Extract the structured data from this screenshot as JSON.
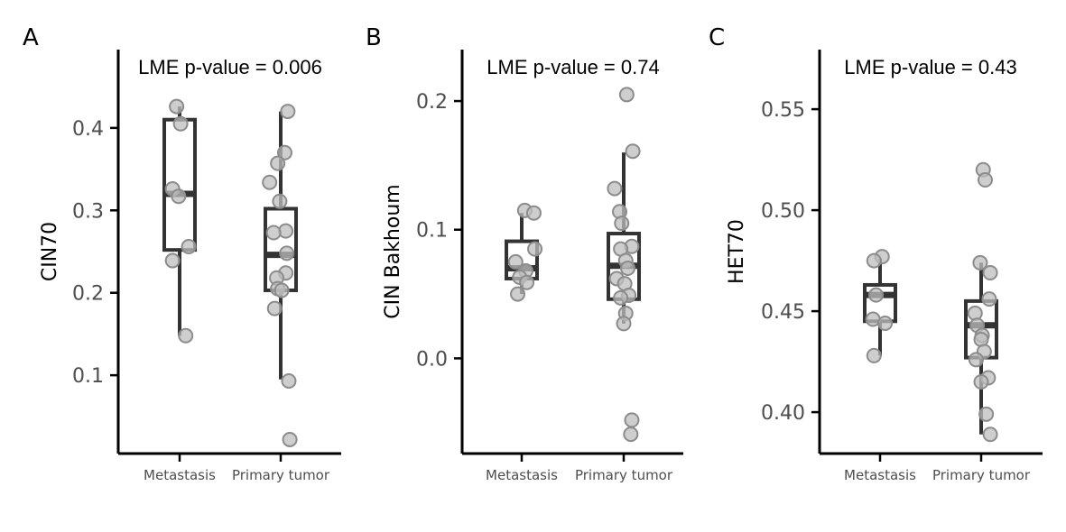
{
  "chart_data": [
    {
      "type": "box",
      "panel_tag": "A",
      "annotation": "LME p-value = 0.006",
      "ylabel": "CIN70",
      "categories": [
        "Metastasis",
        "Primary tumor"
      ],
      "yticks": [
        0.1,
        0.2,
        0.3,
        0.4
      ],
      "ytick_labels": [
        "0.1",
        "0.2",
        "0.3",
        "0.4"
      ],
      "ylim": [
        0.005,
        0.495
      ],
      "boxes": [
        {
          "q1": 0.252,
          "median": 0.32,
          "q3": 0.41,
          "whisker_low": 0.148,
          "whisker_high": 0.426
        },
        {
          "q1": 0.203,
          "median": 0.246,
          "q3": 0.302,
          "whisker_low": 0.095,
          "whisker_high": 0.42
        }
      ],
      "points": [
        {
          "category": 0,
          "jitter": -0.03,
          "value": 0.426
        },
        {
          "category": 0,
          "jitter": 0.01,
          "value": 0.405
        },
        {
          "category": 0,
          "jitter": -0.07,
          "value": 0.326
        },
        {
          "category": 0,
          "jitter": -0.01,
          "value": 0.317
        },
        {
          "category": 0,
          "jitter": 0.09,
          "value": 0.256
        },
        {
          "category": 0,
          "jitter": -0.07,
          "value": 0.239
        },
        {
          "category": 0,
          "jitter": 0.06,
          "value": 0.148
        },
        {
          "category": 1,
          "jitter": 0.07,
          "value": 0.42
        },
        {
          "category": 1,
          "jitter": 0.04,
          "value": 0.37
        },
        {
          "category": 1,
          "jitter": -0.03,
          "value": 0.357
        },
        {
          "category": 1,
          "jitter": -0.11,
          "value": 0.334
        },
        {
          "category": 1,
          "jitter": -0.01,
          "value": 0.311
        },
        {
          "category": 1,
          "jitter": 0.05,
          "value": 0.275
        },
        {
          "category": 1,
          "jitter": -0.07,
          "value": 0.273
        },
        {
          "category": 1,
          "jitter": 0.06,
          "value": 0.248
        },
        {
          "category": 1,
          "jitter": 0.05,
          "value": 0.224
        },
        {
          "category": 1,
          "jitter": -0.04,
          "value": 0.218
        },
        {
          "category": 1,
          "jitter": -0.03,
          "value": 0.205
        },
        {
          "category": 1,
          "jitter": 0.01,
          "value": 0.203
        },
        {
          "category": 1,
          "jitter": -0.06,
          "value": 0.181
        },
        {
          "category": 1,
          "jitter": 0.08,
          "value": 0.093
        },
        {
          "category": 1,
          "jitter": 0.09,
          "value": 0.022
        }
      ]
    },
    {
      "type": "box",
      "panel_tag": "B",
      "annotation": "LME p-value = 0.74",
      "ylabel": "CIN Bakhoum",
      "categories": [
        "Metastasis",
        "Primary tumor"
      ],
      "yticks": [
        0.0,
        0.1,
        0.2
      ],
      "ytick_labels": [
        "0.0",
        "0.1",
        "0.2"
      ],
      "ylim": [
        -0.074,
        0.24
      ],
      "boxes": [
        {
          "q1": 0.062,
          "median": 0.07,
          "q3": 0.091,
          "whisker_low": 0.05,
          "whisker_high": 0.113
        },
        {
          "q1": 0.046,
          "median": 0.072,
          "q3": 0.097,
          "whisker_low": 0.027,
          "whisker_high": 0.16
        }
      ],
      "points": [
        {
          "category": 0,
          "jitter": 0.03,
          "value": 0.115
        },
        {
          "category": 0,
          "jitter": 0.12,
          "value": 0.113
        },
        {
          "category": 0,
          "jitter": 0.13,
          "value": 0.085
        },
        {
          "category": 0,
          "jitter": -0.06,
          "value": 0.075
        },
        {
          "category": 0,
          "jitter": 0.04,
          "value": 0.068
        },
        {
          "category": 0,
          "jitter": -0.02,
          "value": 0.063
        },
        {
          "category": 0,
          "jitter": 0.05,
          "value": 0.059
        },
        {
          "category": 0,
          "jitter": -0.04,
          "value": 0.05
        },
        {
          "category": 1,
          "jitter": 0.03,
          "value": 0.205
        },
        {
          "category": 1,
          "jitter": 0.09,
          "value": 0.161
        },
        {
          "category": 1,
          "jitter": -0.09,
          "value": 0.132
        },
        {
          "category": 1,
          "jitter": -0.04,
          "value": 0.114
        },
        {
          "category": 1,
          "jitter": -0.02,
          "value": 0.105
        },
        {
          "category": 1,
          "jitter": 0.08,
          "value": 0.087
        },
        {
          "category": 1,
          "jitter": -0.03,
          "value": 0.085
        },
        {
          "category": 1,
          "jitter": 0.02,
          "value": 0.076
        },
        {
          "category": 1,
          "jitter": 0.04,
          "value": 0.07
        },
        {
          "category": 1,
          "jitter": -0.07,
          "value": 0.062
        },
        {
          "category": 1,
          "jitter": 0.01,
          "value": 0.058
        },
        {
          "category": 1,
          "jitter": 0.05,
          "value": 0.049
        },
        {
          "category": 1,
          "jitter": -0.03,
          "value": 0.047
        },
        {
          "category": 1,
          "jitter": 0.02,
          "value": 0.035
        },
        {
          "category": 1,
          "jitter": 0.0,
          "value": 0.027
        },
        {
          "category": 1,
          "jitter": 0.08,
          "value": -0.048
        },
        {
          "category": 1,
          "jitter": 0.07,
          "value": -0.059
        }
      ]
    },
    {
      "type": "box",
      "panel_tag": "C",
      "annotation": "LME p-value = 0.43",
      "ylabel": "HET70",
      "categories": [
        "Metastasis",
        "Primary tumor"
      ],
      "yticks": [
        0.4,
        0.45,
        0.5,
        0.55
      ],
      "ytick_labels": [
        "0.40",
        "0.45",
        "0.50",
        "0.55"
      ],
      "ylim": [
        0.3795,
        0.5795
      ],
      "boxes": [
        {
          "q1": 0.445,
          "median": 0.458,
          "q3": 0.463,
          "whisker_low": 0.428,
          "whisker_high": 0.476
        },
        {
          "q1": 0.427,
          "median": 0.443,
          "q3": 0.455,
          "whisker_low": 0.389,
          "whisker_high": 0.474
        }
      ],
      "points": [
        {
          "category": 0,
          "jitter": 0.02,
          "value": 0.477
        },
        {
          "category": 0,
          "jitter": -0.06,
          "value": 0.475
        },
        {
          "category": 0,
          "jitter": -0.04,
          "value": 0.458
        },
        {
          "category": 0,
          "jitter": -0.07,
          "value": 0.446
        },
        {
          "category": 0,
          "jitter": 0.05,
          "value": 0.444
        },
        {
          "category": 0,
          "jitter": -0.06,
          "value": 0.428
        },
        {
          "category": 1,
          "jitter": 0.02,
          "value": 0.52
        },
        {
          "category": 1,
          "jitter": 0.04,
          "value": 0.515
        },
        {
          "category": 1,
          "jitter": -0.01,
          "value": 0.474
        },
        {
          "category": 1,
          "jitter": 0.09,
          "value": 0.469
        },
        {
          "category": 1,
          "jitter": 0.08,
          "value": 0.456
        },
        {
          "category": 1,
          "jitter": -0.06,
          "value": 0.449
        },
        {
          "category": 1,
          "jitter": -0.04,
          "value": 0.443
        },
        {
          "category": 1,
          "jitter": 0.01,
          "value": 0.438
        },
        {
          "category": 1,
          "jitter": 0.0,
          "value": 0.436
        },
        {
          "category": 1,
          "jitter": 0.03,
          "value": 0.43
        },
        {
          "category": 1,
          "jitter": -0.05,
          "value": 0.426
        },
        {
          "category": 1,
          "jitter": 0.07,
          "value": 0.417
        },
        {
          "category": 1,
          "jitter": 0.0,
          "value": 0.415
        },
        {
          "category": 1,
          "jitter": 0.05,
          "value": 0.399
        },
        {
          "category": 1,
          "jitter": 0.09,
          "value": 0.389
        }
      ]
    }
  ],
  "style": {
    "point_fill": "#bdbdbd",
    "point_stroke": "#8c8c8c",
    "box_stroke": "#333333",
    "axis_color": "#000000"
  }
}
